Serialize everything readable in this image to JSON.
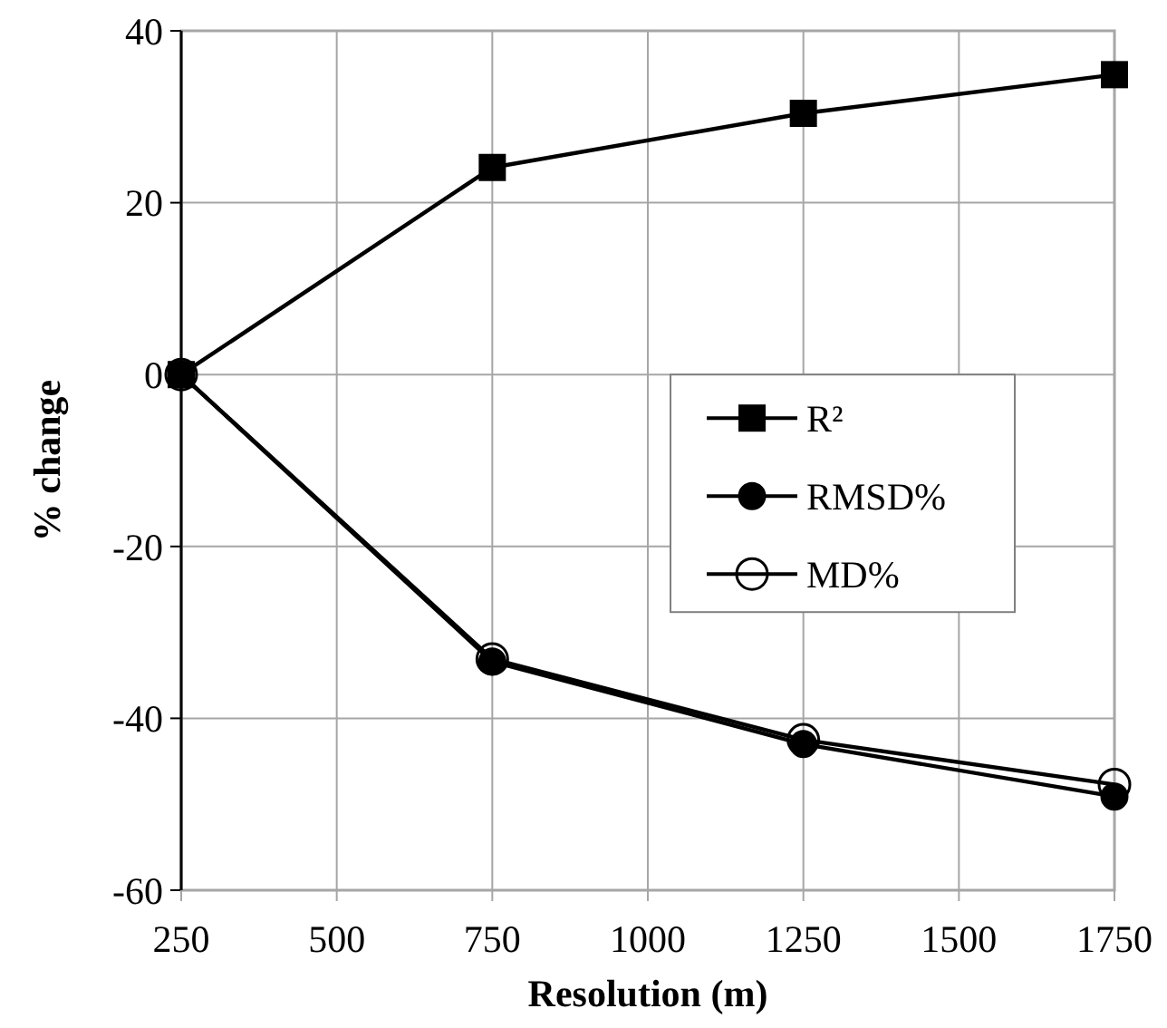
{
  "chart_data": {
    "type": "line",
    "xlabel": "Resolution (m)",
    "ylabel": "% change",
    "x": [
      250,
      750,
      1250,
      1750
    ],
    "series": [
      {
        "name": "R²",
        "color": "#000000",
        "marker": "square",
        "values": [
          0,
          24.1,
          30.4,
          34.9
        ]
      },
      {
        "name": "RMSD%",
        "color": "#000000",
        "marker": "circle",
        "values": [
          0,
          -33.4,
          -43,
          -49.1
        ]
      },
      {
        "name": "MD%",
        "color": "#000000",
        "marker": "circle",
        "values": [
          0,
          -33.1,
          -42.5,
          -47.7
        ]
      }
    ],
    "xlim": [
      250,
      1750
    ],
    "xticks": [
      250,
      500,
      750,
      1000,
      1250,
      1500,
      1750
    ],
    "ylim": [
      -60,
      40
    ],
    "yticks": [
      -60,
      -40,
      -20,
      0,
      20,
      40
    ],
    "grid": true,
    "legend": "right"
  }
}
